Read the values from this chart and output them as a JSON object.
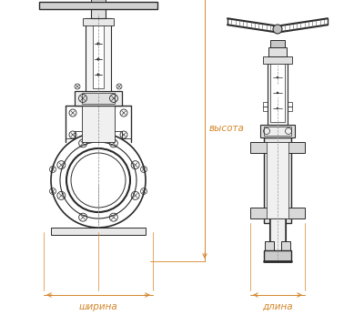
{
  "bg_color": "#ffffff",
  "line_color": "#2a2a2a",
  "dim_color": "#d4862a",
  "dim_text_color": "#d4862a",
  "gray_fill": "#c8c8c8",
  "light_gray": "#e0e0e0",
  "mid_gray": "#a0a0a0",
  "label_shirina": "ширина",
  "label_vysota": "высота",
  "label_dlina": "длина",
  "label_fontsize": 7.5,
  "figsize": [
    4.0,
    3.46
  ],
  "dpi": 100
}
